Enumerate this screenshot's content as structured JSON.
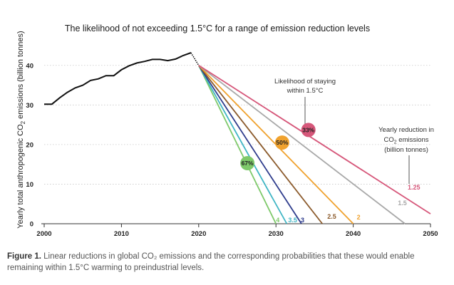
{
  "chart_data": {
    "type": "line",
    "title": "The likelihood of not exceeding 1.5°C for a range of emission reduction levels",
    "ylabel_main": "Yearly total anthropogenic CO",
    "ylabel_sub": "2",
    "ylabel_tail": " emissions (billion tonnes)",
    "xlim": [
      2000,
      2050
    ],
    "ylim": [
      0,
      45
    ],
    "xticks": [
      "2000",
      "2010",
      "2020",
      "2030",
      "2040",
      "2050"
    ],
    "yticks": [
      "0",
      "10",
      "20",
      "30",
      "40"
    ],
    "grid": "horizontal dotted",
    "historical": {
      "color": "#111111",
      "x": [
        2000,
        2001,
        2002,
        2003,
        2004,
        2005,
        2006,
        2007,
        2008,
        2009,
        2010,
        2011,
        2012,
        2013,
        2014,
        2015,
        2016,
        2017,
        2018,
        2019
      ],
      "y": [
        30.2,
        30.2,
        31.8,
        33.2,
        34.3,
        35.0,
        36.2,
        36.6,
        37.4,
        37.4,
        38.9,
        39.9,
        40.6,
        41.0,
        41.5,
        41.5,
        41.2,
        41.6,
        42.5,
        43.2
      ]
    },
    "scenario_start": {
      "x": 2019,
      "y": 43.2,
      "projected_x": 2020,
      "projected_y": 40.0
    },
    "series": [
      {
        "name": "4",
        "color": "#7ec96a",
        "end_x": 2030.0
      },
      {
        "name": "3.5",
        "color": "#3fb5c4",
        "end_x": 2031.4
      },
      {
        "name": "3",
        "color": "#2e3c8c",
        "end_x": 2033.3
      },
      {
        "name": "2.5",
        "color": "#8b5a2b",
        "end_x": 2036.0
      },
      {
        "name": "2",
        "color": "#f0a22e",
        "end_x": 2040.0
      },
      {
        "name": "1.5",
        "color": "#a8a8a8",
        "end_x": 2046.7
      },
      {
        "name": "1.25",
        "color": "#d6577a",
        "end_x": 2050.0,
        "end_y": 2.5
      }
    ],
    "likelihood_badges": [
      {
        "text": "67%",
        "color": "#7ec96a",
        "x": 2026.3,
        "y": 15.3
      },
      {
        "text": "50%",
        "color": "#f0a22e",
        "x": 2030.8,
        "y": 20.5
      },
      {
        "text": "33%",
        "color": "#d6577a",
        "x": 2034.2,
        "y": 23.7
      }
    ],
    "annotations": {
      "likelihood_line1": "Likelihood of staying",
      "likelihood_line2": "within 1.5°C",
      "reduction_line1": "Yearly reduction in",
      "reduction_line2_a": "CO",
      "reduction_line2_sub": "2",
      "reduction_line2_b": " emissions",
      "reduction_line3": "(billion tonnes)"
    }
  },
  "caption": {
    "figure_label": "Figure 1.",
    "text": " Linear reductions in global CO₂ emissions and the corresponding probabilities that these would enable remaining within 1.5°C warming to preindustrial levels."
  }
}
